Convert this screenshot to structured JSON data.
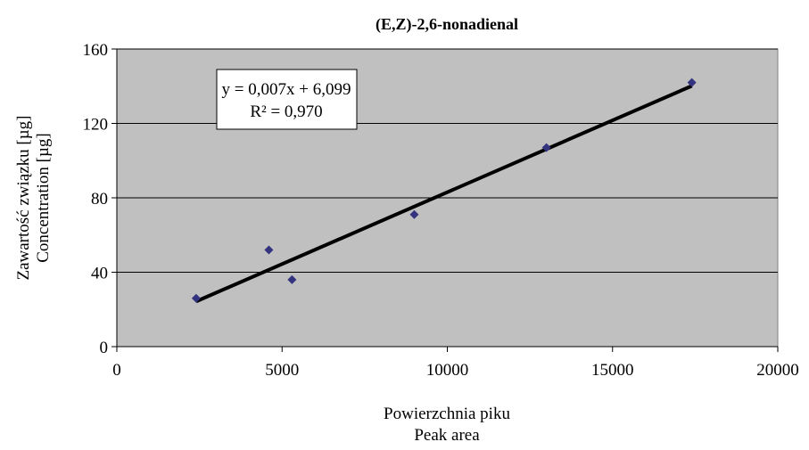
{
  "chart_data": {
    "type": "scatter",
    "title": "(E,Z)-2,6-nonadienal",
    "y_label": [
      "Zawartość związku [µg]",
      "Concentration [µg]"
    ],
    "x_label": [
      "Powierzchnia piku",
      "Peak area"
    ],
    "annotation": [
      "y = 0,007x + 6,099",
      "R² = 0,970"
    ],
    "series": [
      {
        "color": "#33337f",
        "x": [
          2400,
          4600,
          5300,
          9000,
          13000,
          17400
        ],
        "values": [
          26,
          52,
          36,
          71,
          107,
          142
        ]
      }
    ],
    "xlim": [
      0,
      20000
    ],
    "xticks": [
      0,
      5000,
      10000,
      15000,
      20000
    ],
    "ylim": [
      0,
      160
    ],
    "yticks": [
      0,
      40,
      80,
      120,
      160
    ],
    "grid": true,
    "trendline": true
  }
}
